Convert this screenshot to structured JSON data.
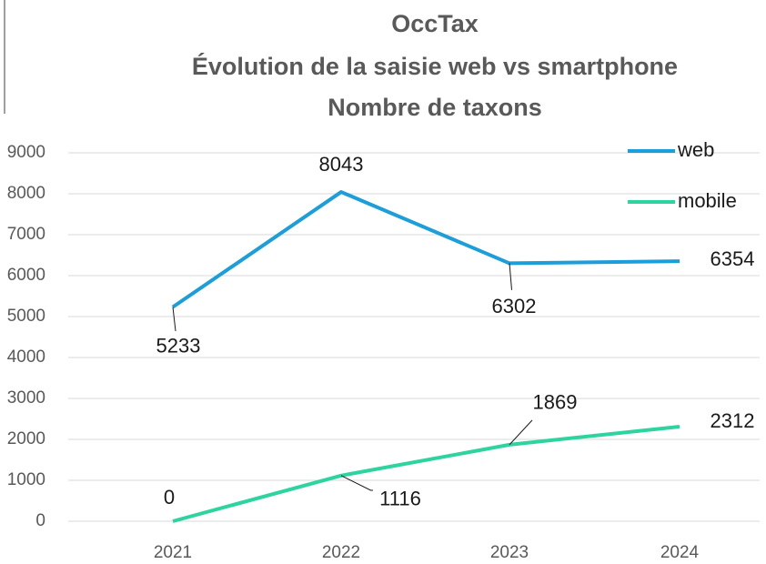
{
  "chart_data": {
    "type": "line",
    "title": [
      "OccTax",
      "Évolution de la saisie web vs smartphone",
      "Nombre de taxons"
    ],
    "categories": [
      "2021",
      "2022",
      "2023",
      "2024"
    ],
    "series": [
      {
        "name": "web",
        "color": "#1b9ed9",
        "values": [
          5233,
          8043,
          6302,
          6354
        ]
      },
      {
        "name": "mobile",
        "color": "#2dd4a0",
        "values": [
          0,
          1116,
          1869,
          2312
        ]
      }
    ],
    "ylim": [
      0,
      9000
    ],
    "yticks": [
      0,
      1000,
      2000,
      3000,
      4000,
      5000,
      6000,
      7000,
      8000,
      9000
    ],
    "grid": true,
    "legend": "top-right"
  }
}
